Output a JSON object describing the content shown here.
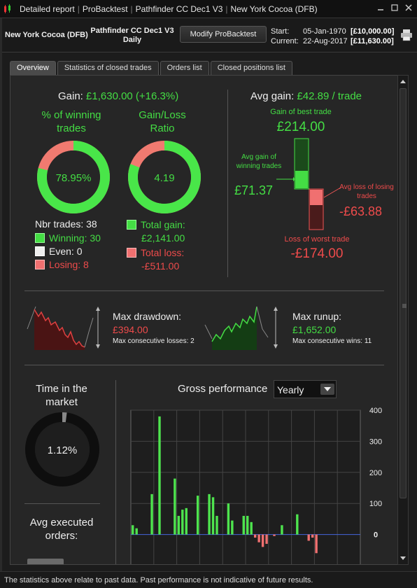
{
  "titlebar": {
    "crumbs": [
      "Detailed report",
      "ProBacktest",
      "Pathfinder CC Dec1 V3",
      "New York Cocoa (DFB)"
    ]
  },
  "header": {
    "instrument": "New York Cocoa (DFB)",
    "strategy_name": "Pathfinder CC Dec1 V3",
    "timeframe": "Daily",
    "modify_button": "Modify ProBacktest",
    "start_label": "Start:",
    "start_date": "05-Jan-1970",
    "start_value": "[£10,000.00]",
    "current_label": "Current:",
    "current_date": "22-Aug-2017",
    "current_value": "[£11,630.00]"
  },
  "tabs": [
    "Overview",
    "Statistics of closed trades",
    "Orders list",
    "Closed positions list"
  ],
  "summary": {
    "gain_label": "Gain:",
    "gain_value": "£1,630.00 (+16.3%)",
    "winning_label": "% of winning trades",
    "winning_pct_value": "78.95%",
    "winning_fraction": 0.7895,
    "ratio_label": "Gain/Loss Ratio",
    "ratio_value": "4.19",
    "ratio_fraction": 0.8073,
    "nbr_trades": "Nbr trades: 38",
    "winning": "Winning: 30",
    "even": "Even: 0",
    "losing": "Losing: 8",
    "total_gain_label": "Total gain:",
    "total_gain_value": "£2,141.00",
    "total_loss_label": "Total loss:",
    "total_loss_value": "-£511.00"
  },
  "avg": {
    "avg_gain_label": "Avg gain:",
    "avg_gain_value": "£42.89 / trade",
    "best_label": "Gain of best trade",
    "best_value": "£214.00",
    "avg_win_label": "Avg gain of winning trades",
    "avg_win_value": "£71.37",
    "avg_loss_label": "Avg loss of losing trades",
    "avg_loss_value": "-£63.88",
    "worst_label": "Loss of worst trade",
    "worst_value": "-£174.00"
  },
  "drawdown": {
    "label": "Max drawdown:",
    "value": "£394.00",
    "consec_label": "Max consecutive losses: 2"
  },
  "runup": {
    "label": "Max runup:",
    "value": "£1,652.00",
    "consec_label": "Max consecutive wins: 11"
  },
  "time_market": {
    "label": "Time in the market",
    "value": "1.12%",
    "fraction": 0.0112
  },
  "avg_orders": {
    "label": "Avg executed orders:"
  },
  "gross": {
    "label": "Gross performance",
    "period": "Yearly"
  },
  "chart_data": {
    "type": "bar",
    "title": "Gross performance",
    "yticks": [
      400,
      300,
      200,
      100,
      0
    ],
    "ylim": [
      -100,
      400
    ],
    "grid": true,
    "positive_color": "#4ee44e",
    "negative_color": "#f07070",
    "values": [
      30,
      20,
      0,
      0,
      0,
      130,
      0,
      380,
      0,
      0,
      0,
      180,
      60,
      80,
      85,
      0,
      0,
      125,
      0,
      0,
      130,
      120,
      60,
      0,
      0,
      100,
      45,
      0,
      0,
      60,
      60,
      40,
      -10,
      -25,
      -40,
      -30,
      0,
      -5,
      0,
      30,
      0,
      0,
      0,
      65,
      0,
      0,
      -20,
      -10,
      -60,
      0,
      0,
      0,
      0,
      0,
      0,
      0,
      0,
      0,
      0,
      0
    ]
  },
  "footer": {
    "text": "The statistics above relate to past data. Past performance is not indicative of future results."
  },
  "colors": {
    "green": "#44dd44",
    "red": "#ee4b4b",
    "background": "#262626"
  }
}
